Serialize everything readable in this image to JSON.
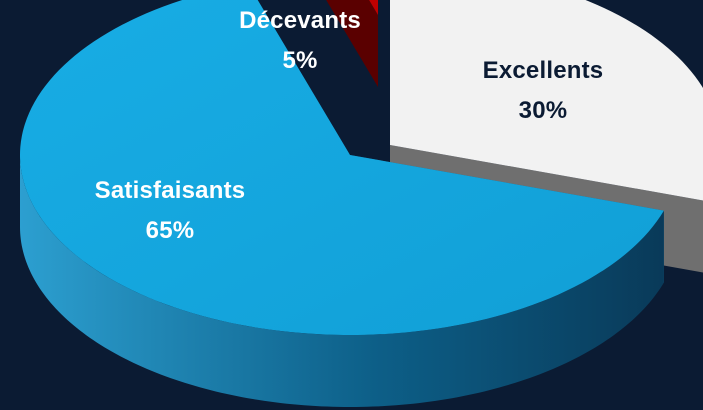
{
  "chart_data": {
    "type": "pie",
    "style": "3d-exploded",
    "slices": [
      {
        "name": "Excellents",
        "label": "30%",
        "value": 30,
        "color": "#f2f2f2",
        "side_color": "#6f6f6f",
        "text_color": "#0b1b33"
      },
      {
        "name": "Satisfaisants",
        "label": "65%",
        "value": 65,
        "color": "#17a9df",
        "side_color": "#115f86",
        "text_color": "#ffffff"
      },
      {
        "name": "Décevants",
        "label": "5%",
        "value": 5,
        "color": "#c00000",
        "side_color": "#5a0000",
        "text_color": "#ffffff"
      }
    ],
    "background": "#0b1b33",
    "legend": "none"
  }
}
